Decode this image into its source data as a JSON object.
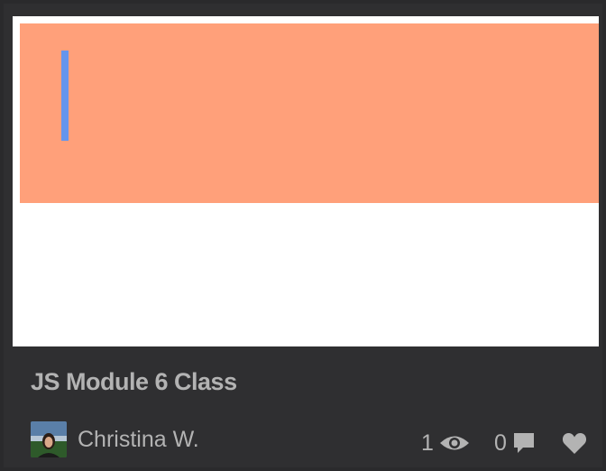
{
  "card": {
    "title": "JS Module 6 Class",
    "author": {
      "name": "Christina W.",
      "avatar_icon": "user-photo"
    },
    "stats": {
      "views": "1",
      "comments": "0"
    },
    "icons": {
      "views": "eye-icon",
      "comments": "speech-bubble-icon",
      "like": "heart-icon"
    },
    "preview": {
      "banner_color": "#ffa07a",
      "bar_color": "#6495ed"
    }
  }
}
